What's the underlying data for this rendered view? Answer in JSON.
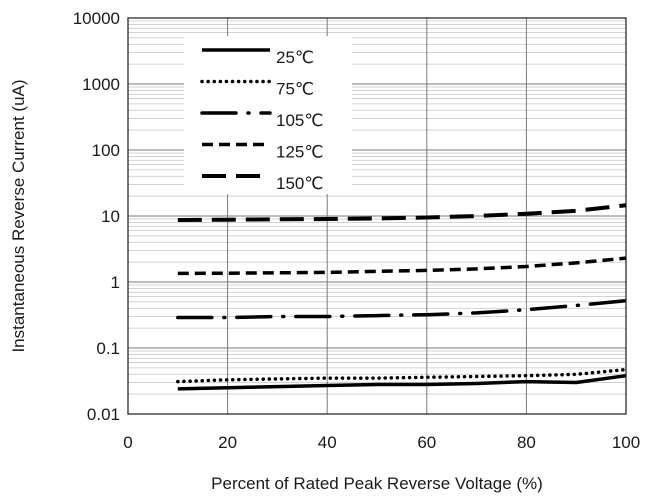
{
  "chart_data": {
    "type": "line",
    "title": "",
    "xlabel": "Percent of Rated Peak Reverse Voltage (%)",
    "ylabel": "Instantaneous Reverse Current (uA)",
    "xlim": [
      0,
      100
    ],
    "ylim": [
      0.01,
      10000
    ],
    "yscale": "log",
    "x_ticks": [
      0,
      20,
      40,
      60,
      80,
      100
    ],
    "x_tick_labels": [
      "0",
      "20",
      "40",
      "60",
      "80",
      "100"
    ],
    "y_ticks": [
      0.01,
      0.1,
      1,
      10,
      100,
      1000,
      10000
    ],
    "y_tick_labels": [
      "0.01",
      "0.1",
      "1",
      "10",
      "100",
      "1000",
      "10000"
    ],
    "grid": {
      "major": true,
      "minor_y": true
    },
    "legend_position": "top-left",
    "series": [
      {
        "name": "25℃",
        "line_style": "solid",
        "x": [
          10,
          20,
          30,
          40,
          50,
          60,
          70,
          80,
          90,
          100
        ],
        "y": [
          0.024,
          0.025,
          0.026,
          0.027,
          0.028,
          0.028,
          0.029,
          0.031,
          0.03,
          0.038
        ]
      },
      {
        "name": "75℃",
        "line_style": "dotted",
        "x": [
          10,
          20,
          30,
          40,
          50,
          60,
          70,
          80,
          90,
          100
        ],
        "y": [
          0.031,
          0.033,
          0.034,
          0.035,
          0.035,
          0.036,
          0.037,
          0.038,
          0.04,
          0.047
        ]
      },
      {
        "name": "105℃",
        "line_style": "dash-dot",
        "x": [
          10,
          20,
          30,
          40,
          50,
          60,
          70,
          80,
          90,
          100
        ],
        "y": [
          0.29,
          0.29,
          0.3,
          0.3,
          0.31,
          0.32,
          0.34,
          0.38,
          0.44,
          0.52
        ]
      },
      {
        "name": "125℃",
        "line_style": "dashed",
        "x": [
          10,
          20,
          30,
          40,
          50,
          60,
          70,
          80,
          90,
          100
        ],
        "y": [
          1.35,
          1.36,
          1.38,
          1.4,
          1.45,
          1.5,
          1.58,
          1.72,
          1.95,
          2.3
        ]
      },
      {
        "name": "150℃",
        "line_style": "long-dash",
        "x": [
          10,
          20,
          30,
          40,
          50,
          60,
          70,
          80,
          90,
          100
        ],
        "y": [
          8.7,
          8.8,
          8.9,
          9.0,
          9.2,
          9.5,
          10.0,
          10.8,
          12.0,
          14.5
        ]
      }
    ]
  }
}
